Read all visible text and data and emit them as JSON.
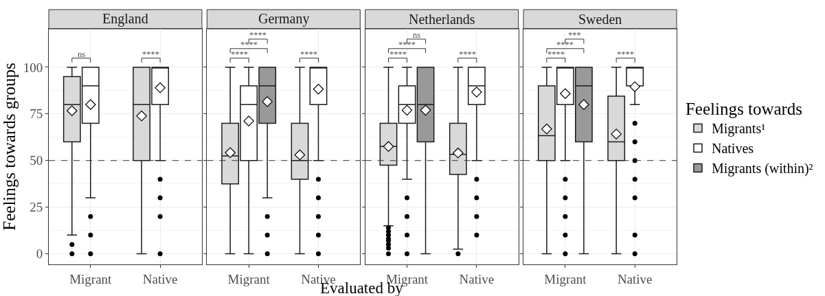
{
  "chart_data": [
    {
      "type": "box",
      "title": "England",
      "ylabel": "Feelings towards groups",
      "categories": [
        "Migrant",
        "Native"
      ],
      "ylim": [
        -5.7,
        120.6
      ],
      "yticks": [
        0,
        25,
        50,
        75,
        100
      ],
      "grid": true,
      "ref_lines": [
        {
          "axis": "y",
          "value": 50,
          "line_style": "dashed"
        }
      ],
      "annotations": [
        "ns",
        "****"
      ],
      "series": [
        {
          "color": "#d9d9d9",
          "boxes": [
            {
              "low": 10,
              "q1": 60,
              "median": 80,
              "q3": 95,
              "high": 100,
              "mean": 76.7,
              "outliers": [
                5,
                0
              ]
            },
            {
              "low": 0,
              "q1": 50,
              "median": 80,
              "q3": 100,
              "high": 100,
              "mean": 73.9
            }
          ]
        },
        {
          "color": "#ffffff",
          "boxes": [
            {
              "low": 30,
              "q1": 70,
              "median": 90,
              "q3": 100,
              "high": 100,
              "mean": 80,
              "outliers": [
                20,
                10,
                0
              ]
            },
            {
              "low": 50,
              "q1": 80,
              "median": 100,
              "q3": 100,
              "high": 100,
              "mean": 89,
              "outliers": [
                40,
                30,
                20,
                0
              ]
            }
          ]
        }
      ]
    },
    {
      "type": "box",
      "title": "Germany",
      "xlabel": "Evaluated by",
      "categories": [
        "Migrant",
        "Native"
      ],
      "ylim": [
        -5.7,
        120.6
      ],
      "yticks": [
        0,
        25,
        50,
        75,
        100
      ],
      "grid": true,
      "tick_labels": "x",
      "ref_lines": [
        {
          "axis": "y",
          "value": 50,
          "line_style": "dashed"
        }
      ],
      "annotations": [
        "****",
        "****",
        "****",
        "****"
      ],
      "series": [
        {
          "color": "#d9d9d9",
          "boxes": [
            {
              "low": 0,
              "q1": 37.5,
              "median": 52.5,
              "q3": 70,
              "high": 100,
              "mean": 54.2
            },
            {
              "low": 0,
              "q1": 40,
              "median": 50,
              "q3": 70,
              "high": 100,
              "mean": 53
            }
          ]
        },
        {
          "color": "#ffffff",
          "boxes": [
            {
              "low": 0,
              "q1": 50,
              "median": 80,
              "q3": 90,
              "high": 100,
              "mean": 71.2
            },
            {
              "low": 50,
              "q1": 80,
              "median": 100,
              "q3": 100,
              "high": 100,
              "mean": 88.3,
              "outliers": [
                40,
                30,
                20,
                10,
                0
              ]
            }
          ]
        },
        {
          "color": "#999999",
          "boxes": [
            {
              "low": 30,
              "q1": 70,
              "median": 90,
              "q3": 100,
              "high": 100,
              "mean": 81.6,
              "outliers": [
                20,
                10,
                0
              ]
            },
            null
          ]
        }
      ]
    },
    {
      "type": "box",
      "title": "Netherlands",
      "categories": [
        "Migrant",
        "Native"
      ],
      "ylim": [
        -5.7,
        120.6
      ],
      "yticks": [
        0,
        25,
        50,
        75,
        100
      ],
      "grid": true,
      "tick_labels": "x",
      "ref_lines": [
        {
          "axis": "y",
          "value": 50,
          "line_style": "dashed"
        }
      ],
      "annotations": [
        "****",
        "****",
        "ns",
        "****"
      ],
      "series": [
        {
          "color": "#d9d9d9",
          "boxes": [
            {
              "low": 15,
              "q1": 47.5,
              "median": 57.5,
              "q3": 70,
              "high": 100,
              "mean": 57.5,
              "outliers": [
                14,
                12,
                10,
                8,
                7,
                5,
                3,
                0
              ]
            },
            {
              "low": 2.5,
              "q1": 42.5,
              "median": 53.3,
              "q3": 70,
              "high": 100,
              "mean": 54,
              "outliers": [
                0
              ]
            }
          ]
        },
        {
          "color": "#ffffff",
          "boxes": [
            {
              "low": 40,
              "q1": 70,
              "median": 80,
              "q3": 90,
              "high": 100,
              "mean": 77,
              "outliers": [
                30,
                20,
                10,
                0
              ]
            },
            {
              "low": 50,
              "q1": 80,
              "median": 90,
              "q3": 100,
              "high": 100,
              "mean": 86.7,
              "outliers": [
                40,
                30,
                20,
                10
              ]
            }
          ]
        },
        {
          "color": "#999999",
          "boxes": [
            {
              "low": 0,
              "q1": 60,
              "median": 80,
              "q3": 100,
              "high": 100,
              "mean": 77
            },
            null
          ]
        }
      ]
    },
    {
      "type": "box",
      "title": "Sweden",
      "categories": [
        "Migrant",
        "Native"
      ],
      "ylim": [
        -5.7,
        120.6
      ],
      "yticks": [
        0,
        25,
        50,
        75,
        100
      ],
      "grid": true,
      "legend": "right",
      "legend_title": "Feelings towards",
      "tick_labels": "x",
      "ref_lines": [
        {
          "axis": "y",
          "value": 50,
          "line_style": "dashed"
        }
      ],
      "annotations": [
        "****",
        "****",
        "***",
        "****"
      ],
      "series": [
        {
          "name": "Migrants¹",
          "color": "#d9d9d9",
          "boxes": [
            {
              "low": 0,
              "q1": 50,
              "median": 63.3,
              "q3": 90,
              "high": 100,
              "mean": 66.9
            },
            {
              "low": 0,
              "q1": 50,
              "median": 60,
              "q3": 84.5,
              "high": 100,
              "mean": 64.2
            }
          ]
        },
        {
          "name": "Natives",
          "color": "#ffffff",
          "boxes": [
            {
              "low": 50,
              "q1": 80,
              "median": 100,
              "q3": 100,
              "high": 100,
              "mean": 85.9,
              "outliers": [
                40,
                30,
                20,
                10,
                0
              ]
            },
            {
              "low": 80,
              "q1": 90,
              "median": 100,
              "q3": 100,
              "high": 100,
              "mean": 89.6,
              "outliers": [
                70,
                60,
                50,
                40,
                30,
                10,
                0
              ]
            }
          ]
        },
        {
          "name": "Migrants (within)²",
          "color": "#999999",
          "boxes": [
            {
              "low": 0,
              "q1": 60,
              "median": 90,
              "q3": 100,
              "high": 100,
              "mean": 80
            },
            null
          ]
        }
      ]
    }
  ]
}
